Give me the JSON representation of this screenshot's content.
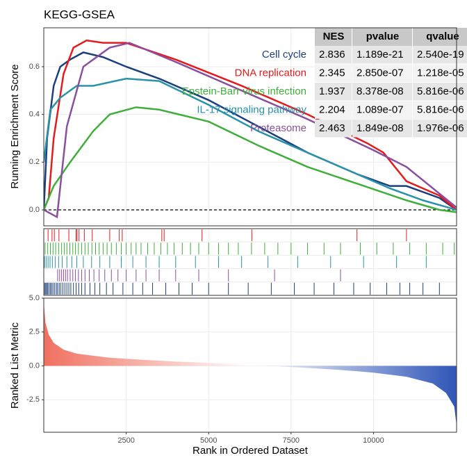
{
  "chart_data": {
    "type": "gsea",
    "title": "KEGG-GSEA",
    "x_label": "Rank in Ordered Dataset",
    "y_label": "Running Enrichment Score",
    "metric_label": "Ranked List Metric",
    "xlim": [
      0,
      12520
    ],
    "xticks": [
      2500,
      5000,
      7500,
      10000
    ],
    "ylim": [
      -0.067,
      0.763
    ],
    "yticks": [
      {
        "value": 0,
        "label": "0.0"
      },
      0.2,
      0.4,
      0.6
    ],
    "grid": true,
    "series": [
      {
        "name": "Cell cycle",
        "color": "#1B3F7E",
        "x": [
          0,
          100,
          300,
          500,
          800,
          1200,
          1800,
          2500,
          3500,
          5000,
          6500,
          8000,
          9500,
          10500,
          11000,
          12000,
          12520
        ],
        "values": [
          0,
          0.3,
          0.52,
          0.6,
          0.63,
          0.66,
          0.64,
          0.6,
          0.55,
          0.46,
          0.35,
          0.24,
          0.15,
          0.1,
          0.1,
          0.05,
          0
        ],
        "hits": [
          30,
          60,
          90,
          120,
          160,
          200,
          240,
          280,
          330,
          380,
          420,
          470,
          520,
          580,
          640,
          700,
          760,
          820,
          900,
          980,
          1060,
          1150,
          1250,
          1400,
          1550,
          1700,
          1900,
          2100,
          2400,
          2700,
          3000,
          3300,
          3700,
          4100,
          4500,
          5000,
          5600,
          6200,
          6900,
          7600,
          8200,
          8800,
          9400,
          9900,
          10400,
          10800,
          11100,
          11500,
          12000
        ]
      },
      {
        "name": "DNA replication",
        "color": "#E41A1C",
        "x": [
          0,
          150,
          300,
          600,
          900,
          1300,
          1800,
          2500,
          4000,
          6000,
          8000,
          9800,
          10300,
          11000,
          12000,
          12520
        ],
        "values": [
          0,
          0.05,
          0.3,
          0.57,
          0.68,
          0.71,
          0.7,
          0.7,
          0.63,
          0.52,
          0.4,
          0.28,
          0.24,
          0.12,
          0.06,
          0
        ],
        "hits": [
          130,
          250,
          320,
          460,
          760,
          980,
          1010,
          1070,
          1230,
          1470,
          2000,
          2290,
          2380,
          3580,
          3650,
          4800,
          6310,
          9500,
          11000
        ]
      },
      {
        "name": "Epstein-Barr virus infection",
        "color": "#3FAE3A",
        "x": [
          0,
          300,
          800,
          1500,
          2000,
          2800,
          3500,
          5000,
          6500,
          8000,
          9500,
          11000,
          12000,
          12520
        ],
        "values": [
          0,
          0.1,
          0.2,
          0.33,
          0.4,
          0.43,
          0.42,
          0.37,
          0.27,
          0.18,
          0.11,
          0.04,
          0,
          -0.01
        ],
        "hits": [
          40,
          120,
          200,
          280,
          360,
          450,
          540,
          620,
          700,
          790,
          880,
          960,
          1050,
          1150,
          1250,
          1350,
          1460,
          1570,
          1680,
          1800,
          1920,
          2050,
          2200,
          2350,
          2500,
          2650,
          2800,
          2950,
          3150,
          3350,
          3550,
          3750,
          3950,
          4200,
          4450,
          4700,
          5000,
          5300,
          5600,
          5900,
          6300,
          6700,
          7100,
          7500,
          8000,
          8500,
          9000,
          9600,
          10100,
          10600,
          11100,
          11600,
          12100,
          12450
        ]
      },
      {
        "name": "IL-17 signaling pathway",
        "color": "#2A92A8",
        "x": [
          0,
          200,
          500,
          1000,
          1500,
          2500,
          3500,
          5000,
          6500,
          8000,
          9500,
          10500,
          11500,
          12520
        ],
        "values": [
          0.2,
          0.42,
          0.47,
          0.52,
          0.52,
          0.55,
          0.54,
          0.44,
          0.33,
          0.24,
          0.15,
          0.09,
          0.04,
          0
        ],
        "hits": [
          20,
          70,
          130,
          190,
          260,
          350,
          450,
          560,
          700,
          850,
          1000,
          1200,
          1450,
          1700,
          2000,
          2350,
          2700,
          3100,
          3500,
          4000,
          4600,
          5300,
          6000,
          6800,
          7700,
          8700,
          9700,
          10700,
          11600
        ]
      },
      {
        "name": "Proteasome",
        "color": "#8B4E9E",
        "x": [
          0,
          400,
          700,
          1200,
          2000,
          2600,
          4000,
          6000,
          8000,
          10000,
          11000,
          12520
        ],
        "values": [
          0,
          -0.03,
          0.35,
          0.6,
          0.68,
          0.7,
          0.62,
          0.5,
          0.38,
          0.25,
          0.18,
          0.01
        ],
        "hits": [
          420,
          480,
          540,
          600,
          660,
          720,
          800,
          880,
          960,
          1050,
          1150,
          1250,
          1380,
          1520,
          1680,
          1850,
          2050,
          2250,
          2500,
          2800,
          3100,
          3500,
          4000,
          4700,
          5600,
          7000,
          9000
        ]
      }
    ],
    "table": {
      "columns": [
        "NES",
        "pvalue",
        "qvalue"
      ],
      "rows": [
        [
          "2.836",
          "1.189e-21",
          "2.540e-19"
        ],
        [
          "2.345",
          "2.850e-07",
          "1.218e-05"
        ],
        [
          "1.937",
          "8.378e-08",
          "5.816e-06"
        ],
        [
          "2.204",
          "1.089e-07",
          "5.816e-06"
        ],
        [
          "2.463",
          "1.849e-08",
          "1.976e-06"
        ]
      ]
    },
    "metric": {
      "x": [
        0,
        50,
        150,
        300,
        600,
        1000,
        2000,
        3000,
        4000,
        5000,
        6000,
        6500,
        7000,
        8000,
        9000,
        10000,
        11000,
        11800,
        12200,
        12450,
        12520
      ],
      "values": [
        4.7,
        3.2,
        2.3,
        1.7,
        1.2,
        0.9,
        0.6,
        0.45,
        0.32,
        0.22,
        0.12,
        0.05,
        -0.02,
        -0.15,
        -0.3,
        -0.5,
        -0.8,
        -1.3,
        -2.0,
        -3.0,
        -4.4
      ],
      "ylim": [
        -4.9,
        5.0
      ],
      "yticks": [
        {
          "value": 5,
          "label": "5.0"
        },
        2.5,
        {
          "value": 0,
          "label": "0.0"
        },
        -2.5
      ],
      "colors": [
        "#F0705F",
        "#FFFFFF",
        "#2E55B8"
      ]
    }
  }
}
